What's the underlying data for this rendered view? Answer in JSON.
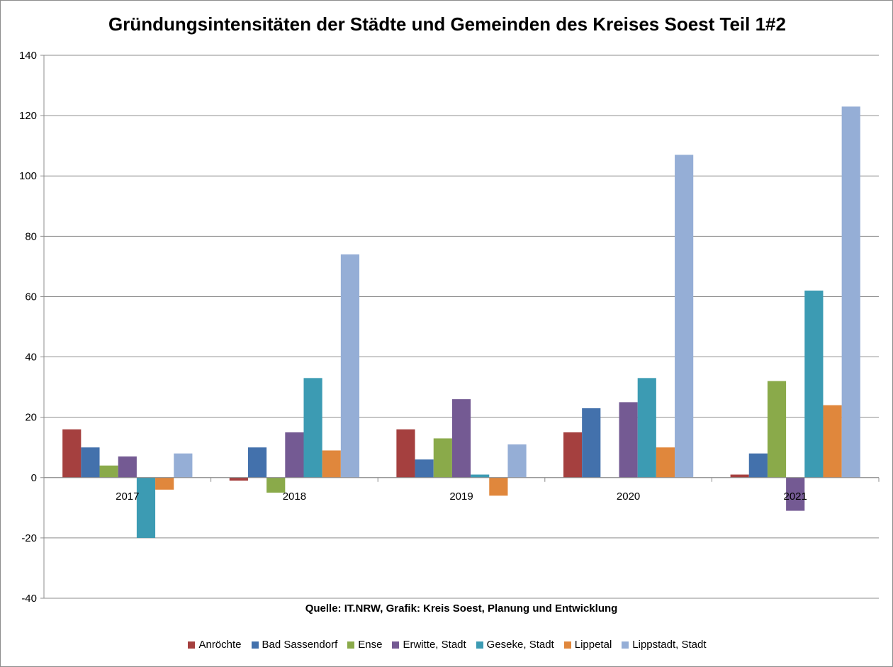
{
  "chart_data": {
    "type": "bar",
    "title": "Gründungsintensitäten der Städte und Gemeinden des Kreises Soest Teil 1#2",
    "source": "Quelle: IT.NRW, Grafik: Kreis Soest, Planung und Entwicklung",
    "categories": [
      "2017",
      "2018",
      "2019",
      "2020",
      "2021"
    ],
    "ylim": [
      -40,
      140
    ],
    "yticks": [
      "140",
      "120",
      "100",
      "80",
      "60",
      "40",
      "20",
      "0",
      "-20",
      "-40"
    ],
    "grid": true,
    "legend_position": "bottom",
    "series": [
      {
        "name": "Anröchte",
        "color": "#A5403F",
        "values": [
          16,
          -1,
          16,
          15,
          1
        ]
      },
      {
        "name": "Bad Sassendorf",
        "color": "#4371AC",
        "values": [
          10,
          10,
          6,
          23,
          8
        ]
      },
      {
        "name": "Ense",
        "color": "#8AAA4A",
        "values": [
          4,
          -5,
          13,
          0,
          32
        ]
      },
      {
        "name": "Erwitte, Stadt",
        "color": "#745A93",
        "values": [
          7,
          15,
          26,
          25,
          -11
        ]
      },
      {
        "name": "Geseke, Stadt",
        "color": "#3C9BB3",
        "values": [
          -20,
          33,
          1,
          33,
          62
        ]
      },
      {
        "name": "Lippetal",
        "color": "#E0873C",
        "values": [
          -4,
          9,
          -6,
          10,
          24
        ]
      },
      {
        "name": "Lippstadt, Stadt",
        "color": "#95AED6",
        "values": [
          8,
          74,
          11,
          107,
          123
        ]
      }
    ]
  }
}
